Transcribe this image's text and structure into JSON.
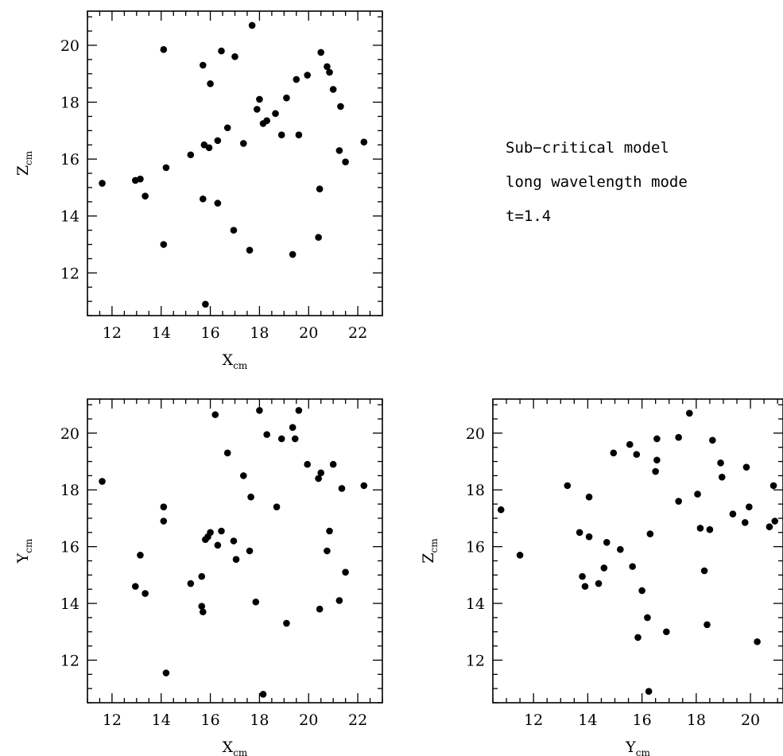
{
  "annotation": {
    "line1": "Sub−critical model",
    "line2": "long wavelength mode",
    "line3": "t=1.4"
  },
  "chart_data": [
    {
      "type": "scatter",
      "xlabel": "X",
      "xlabel_sub": "cm",
      "ylabel": "Z",
      "ylabel_sub": "cm",
      "xlim": [
        11,
        23
      ],
      "ylim": [
        10.5,
        21.2
      ],
      "xticks": [
        12,
        14,
        16,
        18,
        20,
        22
      ],
      "yticks": [
        12,
        14,
        16,
        18,
        20
      ],
      "x_minor_step": 0.5,
      "y_minor_step": 0.5,
      "points": [
        [
          11.6,
          15.15
        ],
        [
          12.95,
          15.25
        ],
        [
          13.15,
          15.3
        ],
        [
          13.35,
          14.7
        ],
        [
          14.1,
          19.85
        ],
        [
          14.1,
          13.0
        ],
        [
          14.2,
          15.7
        ],
        [
          15.2,
          16.15
        ],
        [
          15.7,
          19.3
        ],
        [
          15.7,
          14.6
        ],
        [
          15.75,
          16.5
        ],
        [
          15.8,
          10.9
        ],
        [
          15.95,
          16.4
        ],
        [
          16.0,
          18.65
        ],
        [
          16.3,
          16.65
        ],
        [
          16.3,
          14.45
        ],
        [
          16.45,
          19.8
        ],
        [
          16.7,
          17.1
        ],
        [
          16.95,
          13.5
        ],
        [
          17.0,
          19.6
        ],
        [
          17.35,
          16.55
        ],
        [
          17.6,
          12.8
        ],
        [
          17.7,
          20.7
        ],
        [
          17.9,
          17.75
        ],
        [
          18.0,
          18.1
        ],
        [
          18.15,
          17.25
        ],
        [
          18.3,
          17.35
        ],
        [
          18.65,
          17.6
        ],
        [
          18.9,
          16.85
        ],
        [
          19.1,
          18.15
        ],
        [
          19.35,
          12.65
        ],
        [
          19.5,
          18.8
        ],
        [
          19.6,
          16.85
        ],
        [
          19.95,
          18.95
        ],
        [
          20.4,
          13.25
        ],
        [
          20.45,
          14.95
        ],
        [
          20.5,
          19.75
        ],
        [
          20.75,
          19.25
        ],
        [
          20.85,
          19.05
        ],
        [
          21.0,
          18.45
        ],
        [
          21.25,
          16.3
        ],
        [
          21.3,
          17.85
        ],
        [
          21.5,
          15.9
        ],
        [
          22.25,
          16.6
        ]
      ]
    },
    {
      "type": "scatter",
      "xlabel": "X",
      "xlabel_sub": "cm",
      "ylabel": "Y",
      "ylabel_sub": "cm",
      "xlim": [
        11,
        23
      ],
      "ylim": [
        10.5,
        21.2
      ],
      "xticks": [
        12,
        14,
        16,
        18,
        20,
        22
      ],
      "yticks": [
        12,
        14,
        16,
        18,
        20
      ],
      "x_minor_step": 0.5,
      "y_minor_step": 0.5,
      "points": [
        [
          11.6,
          18.3
        ],
        [
          12.95,
          14.6
        ],
        [
          13.15,
          15.7
        ],
        [
          13.35,
          14.35
        ],
        [
          14.1,
          17.4
        ],
        [
          14.1,
          16.9
        ],
        [
          14.2,
          11.55
        ],
        [
          15.2,
          14.7
        ],
        [
          15.65,
          14.95
        ],
        [
          15.65,
          13.9
        ],
        [
          15.7,
          13.7
        ],
        [
          15.8,
          16.25
        ],
        [
          15.9,
          16.35
        ],
        [
          16.0,
          16.5
        ],
        [
          16.2,
          20.65
        ],
        [
          16.3,
          16.05
        ],
        [
          16.45,
          16.55
        ],
        [
          16.7,
          19.3
        ],
        [
          16.95,
          16.2
        ],
        [
          17.05,
          15.55
        ],
        [
          17.35,
          18.5
        ],
        [
          17.6,
          15.85
        ],
        [
          17.65,
          17.75
        ],
        [
          17.85,
          14.05
        ],
        [
          18.0,
          20.8
        ],
        [
          18.15,
          10.8
        ],
        [
          18.3,
          19.95
        ],
        [
          18.7,
          17.4
        ],
        [
          18.9,
          19.8
        ],
        [
          19.1,
          13.3
        ],
        [
          19.35,
          20.2
        ],
        [
          19.45,
          19.8
        ],
        [
          19.6,
          20.8
        ],
        [
          19.95,
          18.9
        ],
        [
          20.4,
          18.4
        ],
        [
          20.45,
          13.8
        ],
        [
          20.5,
          18.6
        ],
        [
          20.75,
          15.85
        ],
        [
          20.85,
          16.55
        ],
        [
          21.0,
          18.9
        ],
        [
          21.25,
          14.1
        ],
        [
          21.35,
          18.05
        ],
        [
          21.5,
          15.1
        ],
        [
          22.25,
          18.15
        ]
      ]
    },
    {
      "type": "scatter",
      "xlabel": "Y",
      "xlabel_sub": "cm",
      "ylabel": "Z",
      "ylabel_sub": "cm",
      "xlim": [
        10.5,
        21.2
      ],
      "ylim": [
        10.5,
        21.2
      ],
      "xticks": [
        12,
        14,
        16,
        18,
        20
      ],
      "yticks": [
        12,
        14,
        16,
        18,
        20
      ],
      "x_minor_step": 0.5,
      "y_minor_step": 0.5,
      "points": [
        [
          10.8,
          17.3
        ],
        [
          11.5,
          15.7
        ],
        [
          13.25,
          18.15
        ],
        [
          13.7,
          16.5
        ],
        [
          13.8,
          14.95
        ],
        [
          13.9,
          14.6
        ],
        [
          14.05,
          16.35
        ],
        [
          14.05,
          17.75
        ],
        [
          14.4,
          14.7
        ],
        [
          14.6,
          15.25
        ],
        [
          14.7,
          16.15
        ],
        [
          14.95,
          19.3
        ],
        [
          15.2,
          15.9
        ],
        [
          15.55,
          19.6
        ],
        [
          15.65,
          15.3
        ],
        [
          15.8,
          19.25
        ],
        [
          15.85,
          12.8
        ],
        [
          16.0,
          14.45
        ],
        [
          16.2,
          13.5
        ],
        [
          16.25,
          10.9
        ],
        [
          16.3,
          16.45
        ],
        [
          16.5,
          18.65
        ],
        [
          16.55,
          19.05
        ],
        [
          16.55,
          19.8
        ],
        [
          16.9,
          13.0
        ],
        [
          17.35,
          17.6
        ],
        [
          17.35,
          19.85
        ],
        [
          17.75,
          20.7
        ],
        [
          18.05,
          17.85
        ],
        [
          18.15,
          16.65
        ],
        [
          18.3,
          15.15
        ],
        [
          18.4,
          13.25
        ],
        [
          18.5,
          16.6
        ],
        [
          18.6,
          19.75
        ],
        [
          18.9,
          18.95
        ],
        [
          18.95,
          18.45
        ],
        [
          19.35,
          17.15
        ],
        [
          19.8,
          16.85
        ],
        [
          19.85,
          18.8
        ],
        [
          19.95,
          17.4
        ],
        [
          20.25,
          12.65
        ],
        [
          20.7,
          16.7
        ],
        [
          20.85,
          18.15
        ],
        [
          20.9,
          16.9
        ]
      ]
    }
  ]
}
